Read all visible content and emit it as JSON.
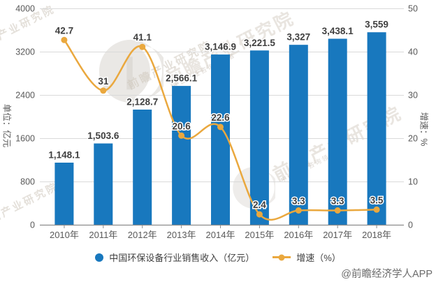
{
  "watermark": {
    "text": "前瞻产业研究院",
    "subtext": "中国产业咨询领导者"
  },
  "attribution": {
    "text": "@前瞻经济学人APP"
  },
  "chart_data": {
    "type": "combo",
    "subtypes": [
      "bar",
      "line"
    ],
    "categories": [
      "2010年",
      "2011年",
      "2012年",
      "2013年",
      "2014年",
      "2015年",
      "2016年",
      "2017年",
      "2018年"
    ],
    "series": [
      {
        "name": "中国环保设备行业销售收入（亿元）",
        "type": "bar",
        "axis": "left",
        "color": "#1878BE",
        "values": [
          1148.1,
          1503.6,
          2128.7,
          2566.1,
          3146.9,
          3221.5,
          3327,
          3438.1,
          3559
        ],
        "labels": [
          "1,148.1",
          "1,503.6",
          "2,128.7",
          "2,566.1",
          "3,146.9",
          "3,221.5",
          "3,327",
          "3,438.1",
          "3,559"
        ]
      },
      {
        "name": "增速（%）",
        "type": "line",
        "axis": "right",
        "color": "#EAA83E",
        "values": [
          42.7,
          31,
          41.1,
          20.6,
          22.6,
          2.4,
          3.3,
          3.3,
          3.5
        ],
        "labels": [
          "42.7",
          "31",
          "41.1",
          "20.6",
          "22.6",
          "2.4",
          "3.3",
          "3.3",
          "3.5"
        ]
      }
    ],
    "left_axis": {
      "title": "单位：亿元",
      "ticks": [
        0,
        800,
        1600,
        2400,
        3200,
        4000
      ],
      "max": 4000
    },
    "right_axis": {
      "title": "增速：%",
      "ticks": [
        0,
        10,
        20,
        30,
        40,
        50
      ],
      "max": 50
    },
    "grid": true,
    "legend_position": "bottom",
    "colors": {
      "grid": "#D9D9D9",
      "axis": "#8C8C8C",
      "tick_text": "#595959",
      "label_text": "#404040",
      "label_halo": "#FFFFFF"
    }
  }
}
